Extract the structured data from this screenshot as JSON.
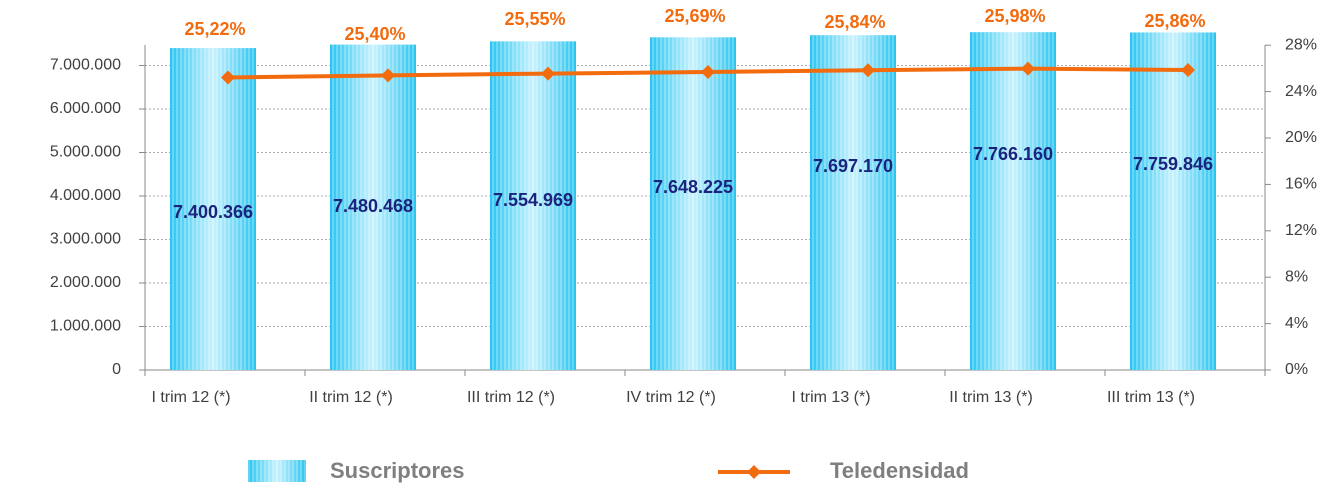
{
  "chart_data": {
    "type": "bar_line",
    "categories": [
      "I trim 12 (*)",
      "II trim 12 (*)",
      "III trim 12 (*)",
      "IV trim 12 (*)",
      "I trim 13 (*)",
      "II trim 13 (*)",
      "III trim 13 (*)"
    ],
    "series": [
      {
        "name": "Suscriptores",
        "color": "#29c4ef",
        "values": [
          7400366,
          7480468,
          7554969,
          7648225,
          7697170,
          7766160,
          7759846
        ],
        "value_labels": [
          "7.400.366",
          "7.480.468",
          "7.554.969",
          "7.648.225",
          "7.697.170",
          "7.766.160",
          "7.759.846"
        ]
      },
      {
        "name": "Teledensidad",
        "color": "#f26b0f",
        "axis": "y2",
        "values": [
          25.22,
          25.4,
          25.55,
          25.69,
          25.84,
          25.98,
          25.86
        ],
        "value_labels": [
          "25,22%",
          "25,40%",
          "25,55%",
          "25,69%",
          "25,84%",
          "25,98%",
          "25,86%"
        ]
      }
    ],
    "ylim": [
      0,
      8000000
    ],
    "yticks": [
      0,
      {
        "value": 1000000,
        "label": "1.000.000"
      },
      {
        "value": 2000000,
        "label": "2.000.000"
      },
      {
        "value": 3000000,
        "label": "3.000.000"
      },
      {
        "value": 4000000,
        "label": "4.000.000"
      },
      {
        "value": 5000000,
        "label": "5.000.000"
      },
      {
        "value": 6000000,
        "label": "6.000.000"
      },
      {
        "value": 7000000,
        "label": "7.000.000"
      }
    ],
    "y2lim": [
      0,
      30
    ],
    "y2ticks": [
      {
        "value": 0,
        "label": "0%"
      },
      {
        "value": 4,
        "label": "4%"
      },
      {
        "value": 8,
        "label": "8%"
      },
      {
        "value": 12,
        "label": "12%"
      },
      {
        "value": 16,
        "label": "16%"
      },
      {
        "value": 20,
        "label": "20%"
      },
      {
        "value": 24,
        "label": "24%"
      },
      {
        "value": 28,
        "label": "28%"
      }
    ],
    "grid": true
  }
}
